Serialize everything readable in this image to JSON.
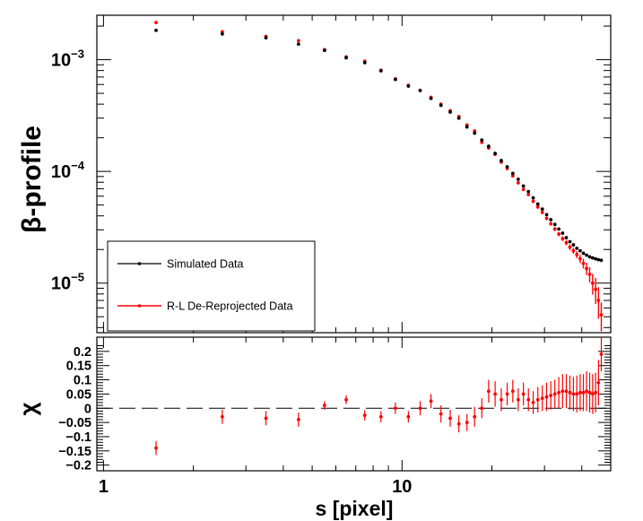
{
  "chart_data": [
    {
      "type": "scatter",
      "panel": "top",
      "xscale": "log",
      "yscale": "log",
      "xlim": [
        0.95,
        50
      ],
      "ylim": [
        3.6e-06,
        0.0025
      ],
      "ylabel": "β-profile",
      "ytick_values": [
        1e-05,
        0.0001,
        0.001
      ],
      "ytick_labels": [
        {
          "base": "10",
          "exp": "−5"
        },
        {
          "base": "10",
          "exp": "−4"
        },
        {
          "base": "10",
          "exp": "−3"
        }
      ],
      "legend": {
        "position": "bottom-left",
        "entries": [
          "Simulated Data",
          "R-L De-Reprojected Data"
        ]
      },
      "colors": {
        "simulated": "#000000",
        "reprojected": "#ff0000"
      },
      "series": [
        {
          "name": "Simulated Data",
          "color": "#000000",
          "x": [
            1.5,
            2.5,
            3.5,
            4.5,
            5.5,
            6.5,
            7.5,
            8.5,
            9.5,
            10.5,
            11.5,
            12.5,
            13.5,
            14.5,
            15.5,
            16.5,
            17.5,
            18.5,
            19.5,
            20.5,
            21.5,
            22.5,
            23.5,
            24.5,
            25.5,
            26.5,
            27.5,
            28.5,
            29.5,
            30.5,
            31.5,
            32.5,
            33.5,
            34.5,
            35.5,
            36.5,
            37.5,
            38.5,
            39.5,
            40.5,
            41.5,
            42.5,
            43.5,
            44.5,
            45.5,
            46.5
          ],
          "y": [
            0.00183,
            0.0017,
            0.00157,
            0.00138,
            0.00121,
            0.00104,
            0.00094,
            0.000795,
            0.000665,
            0.00058,
            0.00053,
            0.00045,
            0.00039,
            0.00034,
            0.0003,
            0.00025,
            0.00022,
            0.000191,
            0.000168,
            0.000145,
            0.000125,
            0.00011,
            9.6e-05,
            8.5e-05,
            7.4e-05,
            6.6e-05,
            5.8e-05,
            5.1e-05,
            4.6e-05,
            4.1e-05,
            3.7e-05,
            3.35e-05,
            3.05e-05,
            2.8e-05,
            2.55e-05,
            2.35e-05,
            2.2e-05,
            2.05e-05,
            1.95e-05,
            1.85e-05,
            1.78e-05,
            1.72e-05,
            1.68e-05,
            1.65e-05,
            1.62e-05,
            1.6e-05
          ]
        },
        {
          "name": "R-L De-Reprojected Data",
          "color": "#ff0000",
          "x": [
            1.5,
            2.5,
            3.5,
            4.5,
            5.5,
            6.5,
            7.5,
            8.5,
            9.5,
            10.5,
            11.5,
            12.5,
            13.5,
            14.5,
            15.5,
            16.5,
            17.5,
            18.5,
            19.5,
            20.5,
            21.5,
            22.5,
            23.5,
            24.5,
            25.5,
            26.5,
            27.5,
            28.5,
            29.5,
            30.5,
            31.5,
            32.5,
            33.5,
            34.5,
            35.5,
            36.5,
            37.5,
            38.5,
            39.5,
            40.5,
            41.5,
            42.5,
            43.5,
            44.5,
            45.5,
            46.5
          ],
          "y": [
            0.00215,
            0.00178,
            0.00162,
            0.00148,
            0.00123,
            0.00106,
            0.00097,
            0.000805,
            0.000675,
            0.00059,
            0.00053,
            0.00046,
            0.0004,
            0.00035,
            0.00031,
            0.00026,
            0.00023,
            0.000182,
            0.000162,
            0.000142,
            0.000121,
            0.000106,
            9.1e-05,
            7.9e-05,
            6.9e-05,
            6.2e-05,
            5.4e-05,
            4.8e-05,
            4.3e-05,
            3.8e-05,
            3.4e-05,
            3.05e-05,
            2.75e-05,
            2.5e-05,
            2.3e-05,
            2.1e-05,
            1.95e-05,
            1.8e-05,
            1.65e-05,
            1.5e-05,
            1.35e-05,
            1.2e-05,
            1e-05,
            8.8e-06,
            7e-06,
            5.2e-06
          ],
          "yerr": [
            5e-05,
            4e-05,
            3.5e-05,
            3e-05,
            2.5e-05,
            2e-05,
            1.8e-05,
            1.5e-05,
            1.3e-05,
            1.1e-05,
            1e-05,
            9e-06,
            8e-06,
            7e-06,
            6.5e-06,
            6e-06,
            5.5e-06,
            5e-06,
            4.5e-06,
            4e-06,
            3.6e-06,
            3.2e-06,
            2.9e-06,
            2.6e-06,
            2.3e-06,
            2.1e-06,
            1.9e-06,
            1.7e-06,
            1.6e-06,
            1.5e-06,
            1.4e-06,
            1.3e-06,
            1.25e-06,
            1.2e-06,
            1.2e-06,
            1.2e-06,
            1.2e-06,
            1.3e-06,
            1.4e-06,
            1.5e-06,
            1.7e-06,
            1.9e-06,
            2.1e-06,
            2.3e-06,
            2.2e-06,
            1.5e-06
          ]
        }
      ]
    },
    {
      "type": "scatter",
      "panel": "bottom",
      "xscale": "log",
      "xlim": [
        0.95,
        50
      ],
      "ylim": [
        -0.22,
        0.25
      ],
      "xlabel": "s [pixel]",
      "ylabel": "χ",
      "reference_line": 0,
      "ytick_values": [
        -0.2,
        -0.15,
        -0.1,
        -0.05,
        0,
        0.05,
        0.1,
        0.15,
        0.2
      ],
      "ytick_labels": [
        "−0.2",
        "−0.15",
        "−0.1",
        "−0.05",
        "0",
        "0.05",
        "0.1",
        "0.15",
        "0.2"
      ],
      "xtick_values": [
        1,
        10
      ],
      "xtick_labels": [
        "1",
        "10"
      ],
      "series": [
        {
          "name": "chi",
          "color": "#ff0000",
          "x": [
            1.5,
            2.5,
            3.5,
            4.5,
            5.5,
            6.5,
            7.5,
            8.5,
            9.5,
            10.5,
            11.5,
            12.5,
            13.5,
            14.5,
            15.5,
            16.5,
            17.5,
            18.5,
            19.5,
            20.5,
            21.5,
            22.5,
            23.5,
            24.5,
            25.5,
            26.5,
            27.5,
            28.5,
            29.5,
            30.5,
            31.5,
            32.5,
            33.5,
            34.5,
            35.5,
            36.5,
            37.5,
            38.5,
            39.5,
            40.5,
            41.5,
            42.5,
            43.5,
            44.5,
            45.5,
            46.5
          ],
          "y": [
            -0.14,
            -0.03,
            -0.035,
            -0.04,
            0.01,
            0.03,
            -0.025,
            -0.03,
            0.0,
            -0.03,
            0.0,
            0.025,
            -0.02,
            -0.035,
            -0.055,
            -0.05,
            -0.03,
            0.0,
            0.06,
            0.05,
            0.03,
            0.05,
            0.06,
            0.03,
            0.05,
            0.03,
            0.02,
            0.03,
            0.035,
            0.04,
            0.045,
            0.05,
            0.055,
            0.06,
            0.06,
            0.055,
            0.05,
            0.05,
            0.055,
            0.055,
            0.06,
            0.055,
            0.05,
            0.055,
            0.09,
            0.19
          ],
          "yerr": [
            0.025,
            0.025,
            0.025,
            0.025,
            0.015,
            0.015,
            0.018,
            0.02,
            0.02,
            0.02,
            0.025,
            0.025,
            0.03,
            0.03,
            0.03,
            0.03,
            0.035,
            0.035,
            0.04,
            0.045,
            0.04,
            0.04,
            0.04,
            0.04,
            0.04,
            0.04,
            0.04,
            0.045,
            0.045,
            0.05,
            0.05,
            0.05,
            0.055,
            0.06,
            0.06,
            0.06,
            0.06,
            0.065,
            0.065,
            0.065,
            0.07,
            0.07,
            0.07,
            0.07,
            0.08,
            0.06
          ]
        }
      ]
    }
  ]
}
